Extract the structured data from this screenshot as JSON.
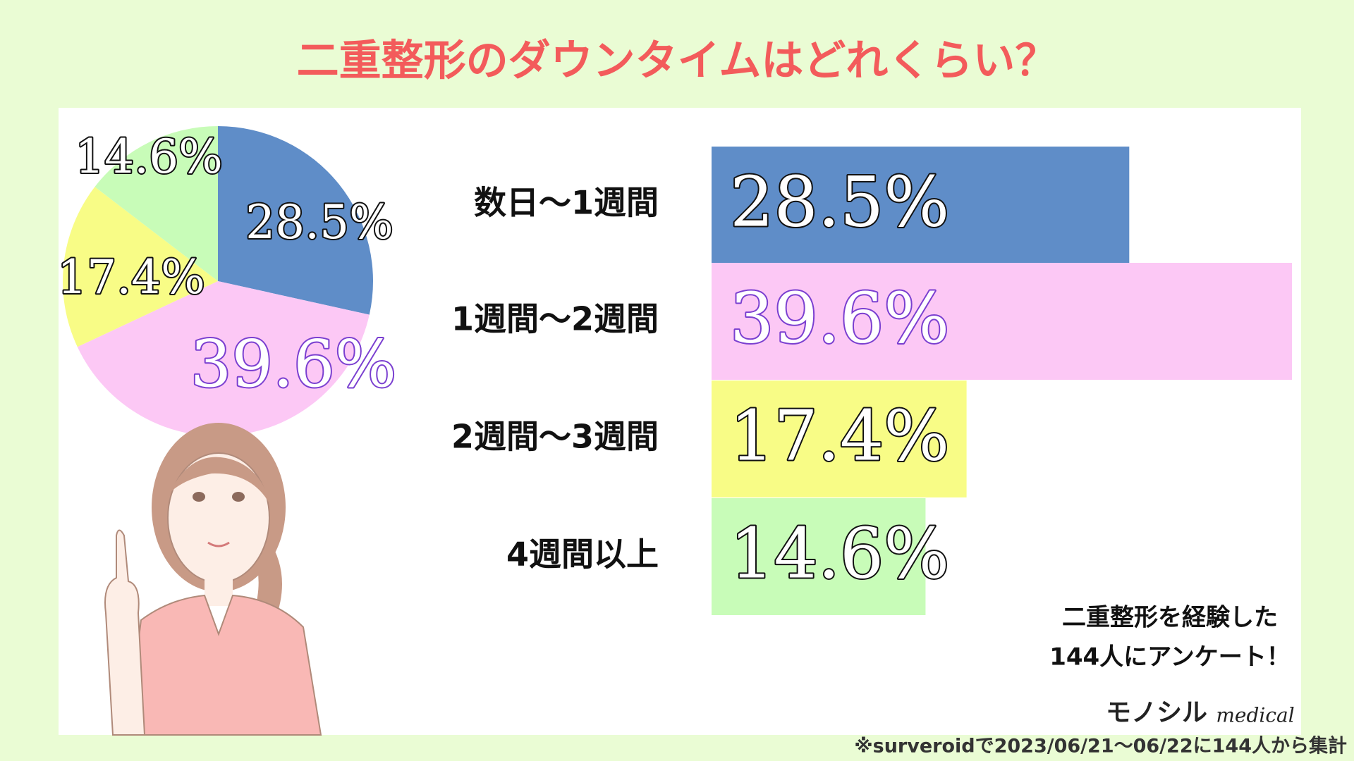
{
  "title": "二重整形のダウンタイムはどれくらい？",
  "chart_data": [
    {
      "type": "pie",
      "values": [
        28.5,
        39.6,
        17.4,
        14.6
      ],
      "value_labels": [
        "28.5%",
        "39.6%",
        "17.4%",
        "14.6%"
      ],
      "colors": [
        "#5f8dc8",
        "#fcc8f5",
        "#f8fc86",
        "#c8fcb8"
      ]
    },
    {
      "type": "bar",
      "orientation": "horizontal",
      "categories": [
        "数日〜1週間",
        "1週間〜2週間",
        "2週間〜3週間",
        "4週間以上"
      ],
      "values": [
        28.5,
        39.6,
        17.4,
        14.6
      ],
      "value_labels": [
        "28.5%",
        "39.6%",
        "17.4%",
        "14.6%"
      ],
      "colors": [
        "#5f8dc8",
        "#fcc8f5",
        "#f8fc86",
        "#c8fcb8"
      ]
    }
  ],
  "annotation": [
    "二重整形を経験した",
    "144人にアンケート！"
  ],
  "brand": {
    "name": "モノシル",
    "sub": "medical"
  },
  "footnote": "※surveroidで2023/06/21〜06/22に144人から集計"
}
